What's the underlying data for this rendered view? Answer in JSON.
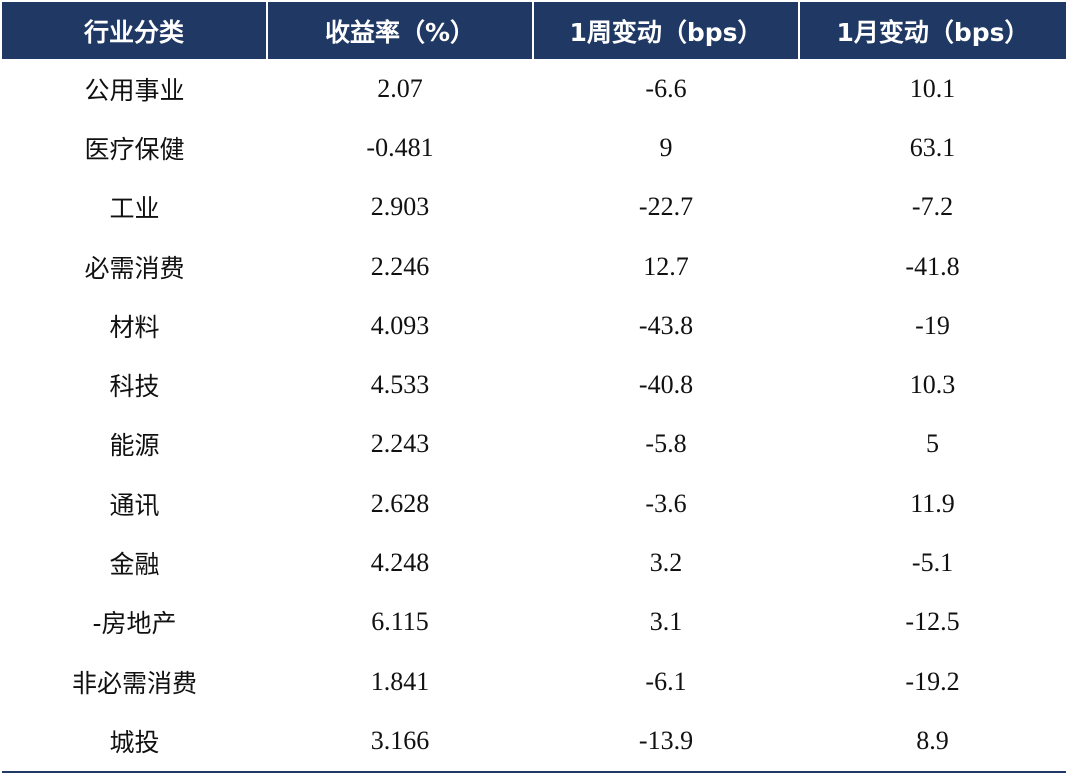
{
  "table": {
    "headers": [
      "行业分类",
      "收益率（%）",
      "1周变动（bps）",
      "1月变动（bps）"
    ],
    "rows": [
      [
        "公用事业",
        "2.07",
        "-6.6",
        "10.1"
      ],
      [
        "医疗保健",
        "-0.481",
        "9",
        "63.1"
      ],
      [
        "工业",
        "2.903",
        "-22.7",
        "-7.2"
      ],
      [
        "必需消费",
        "2.246",
        "12.7",
        "-41.8"
      ],
      [
        "材料",
        "4.093",
        "-43.8",
        "-19"
      ],
      [
        "科技",
        "4.533",
        "-40.8",
        "10.3"
      ],
      [
        "能源",
        "2.243",
        "-5.8",
        "5"
      ],
      [
        "通讯",
        "2.628",
        "-3.6",
        "11.9"
      ],
      [
        "金融",
        "4.248",
        "3.2",
        "-5.1"
      ],
      [
        "-房地产",
        "6.115",
        "3.1",
        "-12.5"
      ],
      [
        "非必需消费",
        "1.841",
        "-6.1",
        "-19.2"
      ],
      [
        "城投",
        "3.166",
        "-13.9",
        "8.9"
      ]
    ],
    "header_bg": "#1f3864",
    "header_color": "#ffffff"
  }
}
